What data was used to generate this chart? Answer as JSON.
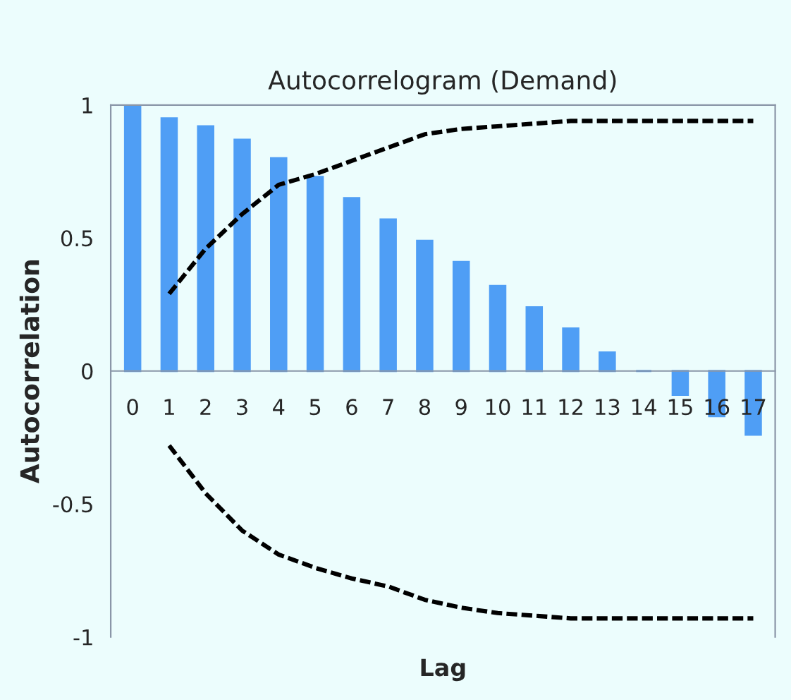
{
  "chart_data": {
    "type": "bar",
    "title": "Autocorrelogram (Demand)",
    "xlabel": "Lag",
    "ylabel": "Autocorrelation",
    "categories": [
      "0",
      "1",
      "2",
      "3",
      "4",
      "5",
      "6",
      "7",
      "8",
      "9",
      "10",
      "11",
      "12",
      "13",
      "14",
      "15",
      "16",
      "17"
    ],
    "series": [
      {
        "color": "#4f9ef5",
        "values": [
          1.0,
          0.95,
          0.92,
          0.87,
          0.8,
          0.73,
          0.65,
          0.57,
          0.49,
          0.41,
          0.32,
          0.24,
          0.16,
          0.07,
          0,
          -0.09,
          -0.17,
          -0.24
        ]
      },
      {
        "type": "line",
        "color": "#000000",
        "line_style": "dashed",
        "values": [
          null,
          0.29,
          0.46,
          0.59,
          0.7,
          0.74,
          0.79,
          0.84,
          0.89,
          0.91,
          0.92,
          0.93,
          0.94,
          0.94,
          0.94,
          0.94,
          0.94,
          0.94
        ]
      },
      {
        "type": "line",
        "color": "#000000",
        "line_style": "dashed",
        "values": [
          null,
          -0.28,
          -0.46,
          -0.6,
          -0.69,
          -0.74,
          -0.78,
          -0.81,
          -0.86,
          -0.89,
          -0.91,
          -0.92,
          -0.93,
          -0.93,
          -0.93,
          -0.93,
          -0.93,
          -0.93
        ]
      }
    ],
    "ylim": [
      -1,
      1
    ],
    "yticks": [
      -1,
      -0.5,
      0,
      0.5,
      1
    ],
    "grid": false,
    "legend": false
  }
}
